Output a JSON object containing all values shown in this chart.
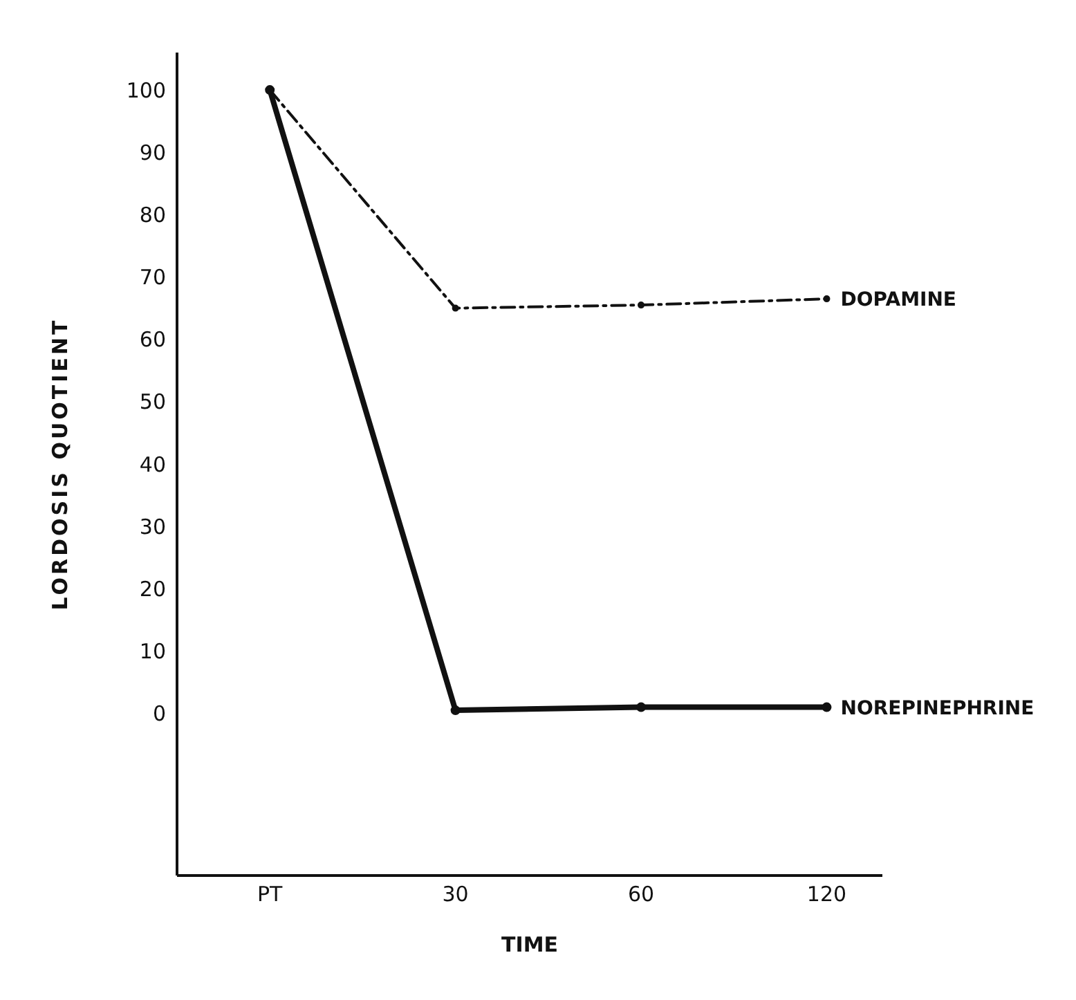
{
  "chart_data": {
    "type": "line",
    "xlabel": "TIME",
    "ylabel": "LORDOSIS QUOTIENT",
    "categories": [
      "PT",
      "30",
      "60",
      "120"
    ],
    "series": [
      {
        "name": "DOPAMINE",
        "color": "#111111",
        "values": [
          100,
          65,
          65.5,
          66.5
        ],
        "line_style": "dashed"
      },
      {
        "name": "NOREPINEPHRINE",
        "color": "#111111",
        "values": [
          100,
          0.5,
          1,
          1
        ],
        "line_style": "solid"
      }
    ],
    "ylim": [
      -26,
      106
    ],
    "yticks": [
      0,
      10,
      20,
      30,
      40,
      50,
      60,
      70,
      80,
      90,
      100
    ],
    "marker": "circle"
  }
}
